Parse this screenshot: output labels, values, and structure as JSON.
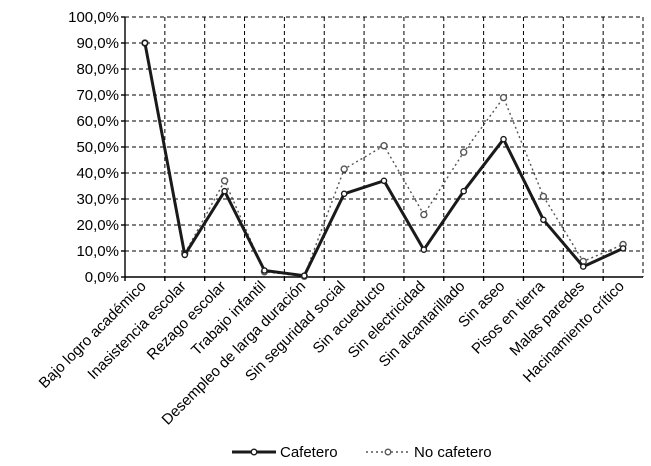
{
  "chart_data": {
    "type": "line",
    "categories": [
      "Bajo logro académico",
      "Inasistencia escolar",
      "Rezago escolar",
      "Trabajo infantil",
      "Desempleo de larga duración",
      "Sin seguridad  social",
      "Sin acueducto",
      "Sin electricidad",
      "Sin alcantarillado",
      "Sin aseo",
      "Pisos en tierra",
      "Malas paredes",
      "Hacinamiento crítico"
    ],
    "series": [
      {
        "name": "Cafetero",
        "values": [
          90.0,
          8.5,
          33.0,
          2.5,
          0.5,
          32.0,
          37.0,
          10.5,
          33.0,
          53.0,
          22.0,
          4.0,
          11.0
        ],
        "color": "#1a1a1a",
        "style": "solid"
      },
      {
        "name": "No cafetero",
        "values": [
          90.0,
          9.0,
          37.0,
          2.0,
          0.3,
          41.5,
          50.5,
          24.0,
          48.0,
          69.0,
          31.0,
          6.0,
          12.5
        ],
        "color": "#555555",
        "style": "dotted"
      }
    ],
    "ylim": [
      0,
      100
    ],
    "yticks": [
      "0,0%",
      "10,0%",
      "20,0%",
      "30,0%",
      "40,0%",
      "50,0%",
      "60,0%",
      "70,0%",
      "80,0%",
      "90,0%",
      "100,0%"
    ],
    "ytick_values": [
      0,
      10,
      20,
      30,
      40,
      50,
      60,
      70,
      80,
      90,
      100
    ],
    "grid": true,
    "legend_position": "bottom",
    "xlabel": "",
    "ylabel": "",
    "title": ""
  }
}
